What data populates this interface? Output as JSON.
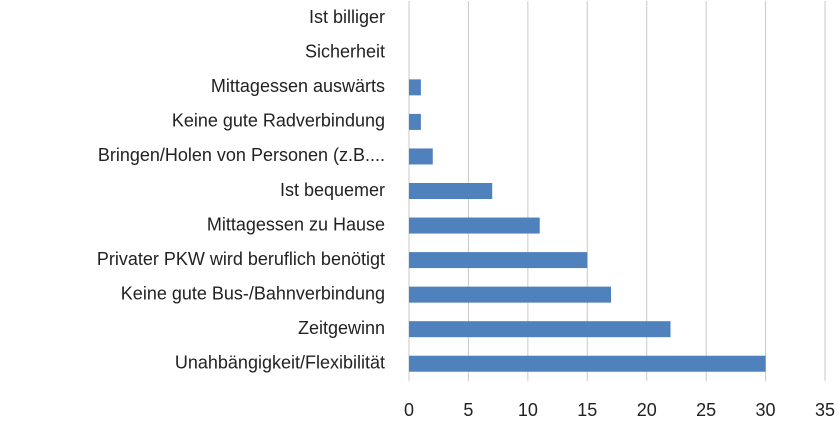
{
  "chart_data": {
    "type": "hbar",
    "categories": [
      "Ist billiger",
      "Sicherheit",
      "Mittagessen auswärts",
      "Keine gute Radverbindung",
      "Bringen/Holen von Personen (z.B....",
      "Ist bequemer",
      "Mittagessen zu Hause",
      "Privater PKW wird beruflich benötigt",
      "Keine gute Bus-/Bahnverbindung",
      "Zeitgewinn",
      "Unahbängigkeit/Flexibilität"
    ],
    "values": [
      0,
      0,
      1,
      1,
      2,
      7,
      11,
      15,
      17,
      22,
      30
    ],
    "color": "#4f81bd",
    "xlim": [
      0,
      35
    ],
    "xticks": [
      0,
      5,
      10,
      15,
      20,
      25,
      30,
      35
    ],
    "grid": true
  }
}
